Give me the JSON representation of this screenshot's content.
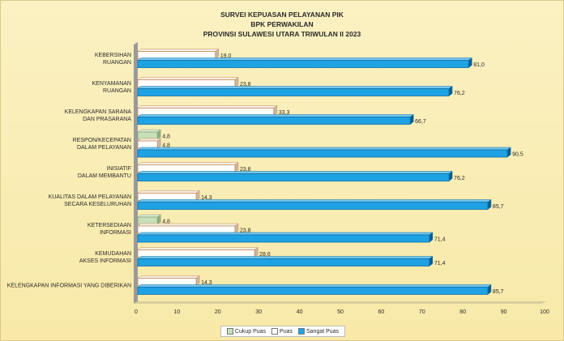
{
  "title_lines": [
    "SURVEI KEPUASAN PELAYANAN PIK",
    "BPK PERWAKILAN",
    "PROVINSI SULAWESI UTARA TRIWULAN II 2023"
  ],
  "chart_data": {
    "type": "bar",
    "orientation": "horizontal",
    "categories": [
      [
        "KEBERSIHAN",
        "RUANGAN"
      ],
      [
        "KENYAMANAN",
        "RUANGAN"
      ],
      [
        "KELENGKAPAN SARANA",
        "DAN PRASARANA"
      ],
      [
        "RESPON/KECEPATAN",
        "DALAM PELAYANAN"
      ],
      [
        "INISIATIF",
        "DALAM MEMBANTU"
      ],
      [
        "KUALITAS DALAM PELAYANAN",
        "SECARA KESELURUHAN"
      ],
      [
        "KETERSEDIAAN",
        "INFORMASI"
      ],
      [
        "KEMUDAHAN",
        "AKSES INFORMASI"
      ],
      [
        "KELENGKAPAN INFORMASI YANG DIBERIKAN"
      ]
    ],
    "series": [
      {
        "name": "Cukup Puas",
        "color": "#c7dfb6",
        "values": [
          null,
          null,
          null,
          4.8,
          null,
          null,
          4.8,
          null,
          null
        ],
        "labels": [
          "",
          "",
          "",
          "4,8",
          "",
          "",
          "4,8",
          "",
          ""
        ]
      },
      {
        "name": "Puas",
        "color": "#ffffff",
        "values": [
          19.0,
          23.8,
          33.3,
          4.8,
          23.8,
          14.3,
          23.8,
          28.6,
          14.3
        ],
        "labels": [
          "19,0",
          "23,8",
          "33,3",
          "4,8",
          "23,8",
          "14,3",
          "23,8",
          "28,6",
          "14,3"
        ]
      },
      {
        "name": "Sangat Puas",
        "color": "#1fa2e3",
        "values": [
          81.0,
          76.2,
          66.7,
          90.5,
          76.2,
          85.7,
          71.4,
          71.4,
          85.7
        ],
        "labels": [
          "81,0",
          "76,2",
          "66,7",
          "90,5",
          "76,2",
          "85,7",
          "71,4",
          "71,4",
          "85,7"
        ]
      }
    ],
    "xlim": [
      0,
      100
    ],
    "xticks": [
      "0",
      "10",
      "20",
      "30",
      "40",
      "50",
      "60",
      "70",
      "80",
      "90",
      "100"
    ],
    "legend_position": "bottom",
    "grid": false
  }
}
